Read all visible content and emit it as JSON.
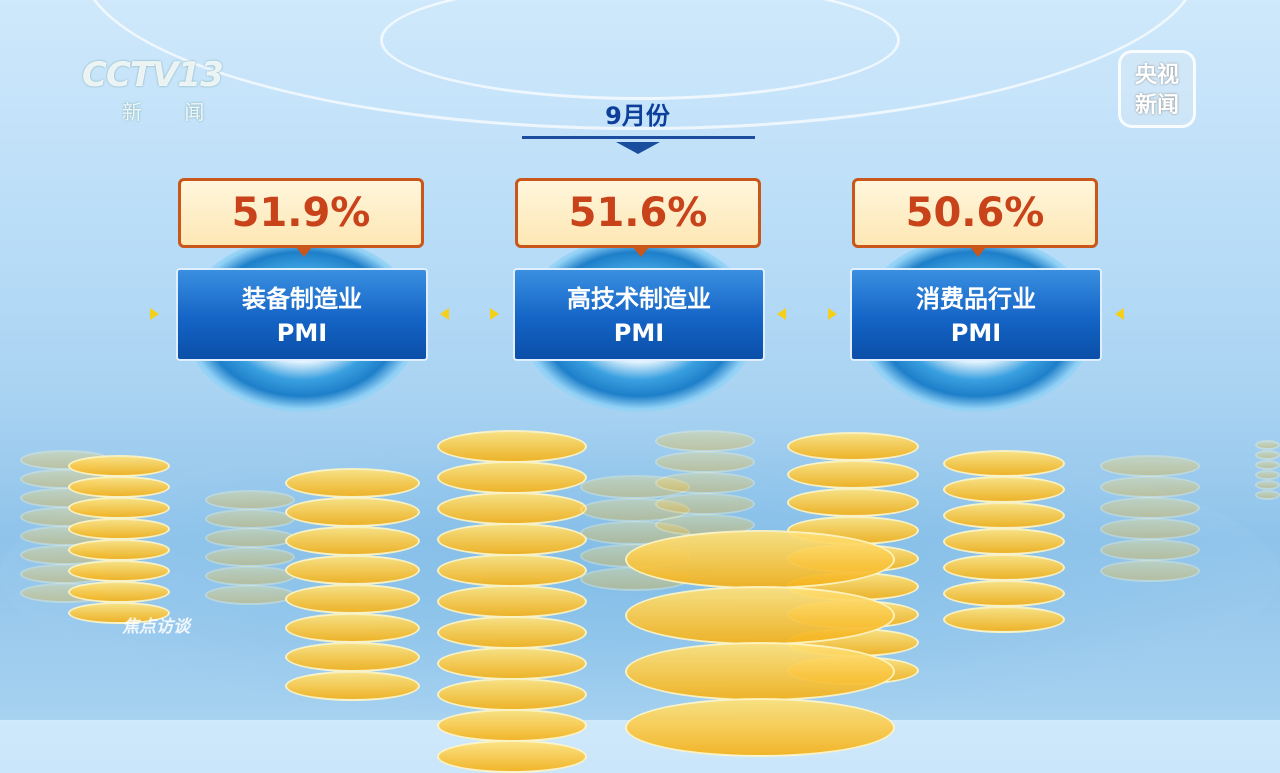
{
  "channel_logo": {
    "text": "CCTV13",
    "sub": "新 闻"
  },
  "corner_badge": {
    "line1": "央视",
    "line2": "新闻"
  },
  "program_watermark": "焦点访谈",
  "period": "9月份",
  "cards": [
    {
      "value": "51.9%",
      "label_line1": "装备制造业",
      "label_line2": "PMI"
    },
    {
      "value": "51.6%",
      "label_line1": "高技术制造业",
      "label_line2": "PMI"
    },
    {
      "value": "50.6%",
      "label_line1": "消费品行业",
      "label_line2": "PMI"
    }
  ],
  "colors": {
    "value_text": "#c8421a",
    "value_border": "#c9561a",
    "label_bg": "#1464c6",
    "period_text": "#0d3f9a",
    "coin": "#f5b21a"
  }
}
